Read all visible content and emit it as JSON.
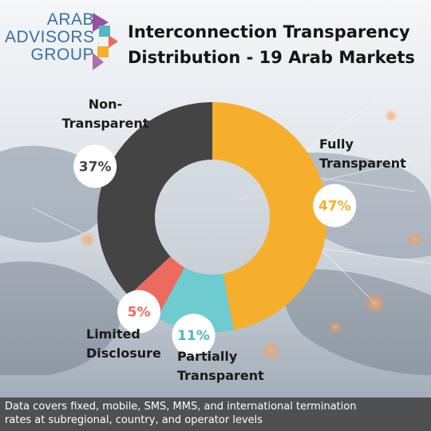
{
  "logo": {
    "line1": "ARAB",
    "line2": "ADVISORS",
    "line3": "GROUP"
  },
  "title_line1": "Interconnection Transparency",
  "title_line2": "Distribution - 19 Arab Markets",
  "footer_line1": "Data covers fixed, mobile, SMS, MMS, and international termination",
  "footer_line2": "rates at subregional, country, and operator levels",
  "chart_data": {
    "type": "pie",
    "title": "Interconnection Transparency Distribution - 19 Arab Markets",
    "categories": [
      "Fully Transparent",
      "Partially Transparent",
      "Limited Disclosure",
      "Non-Transparent"
    ],
    "values": [
      47,
      11,
      5,
      37
    ],
    "labels": [
      "47%",
      "11%",
      "5%",
      "37%"
    ],
    "colors": [
      "#f6ae2d",
      "#6ecbcf",
      "#ec6a5e",
      "#444444"
    ],
    "label_colors": [
      "#f6ae2d",
      "#4fb9c1",
      "#ec6a5e",
      "#444444"
    ],
    "label_lines": [
      [
        "Fully",
        "Transparent"
      ],
      [
        "Partially",
        "Transparent"
      ],
      [
        "Limited",
        "Disclosure"
      ],
      [
        "Non-",
        "Transparent"
      ]
    ]
  }
}
